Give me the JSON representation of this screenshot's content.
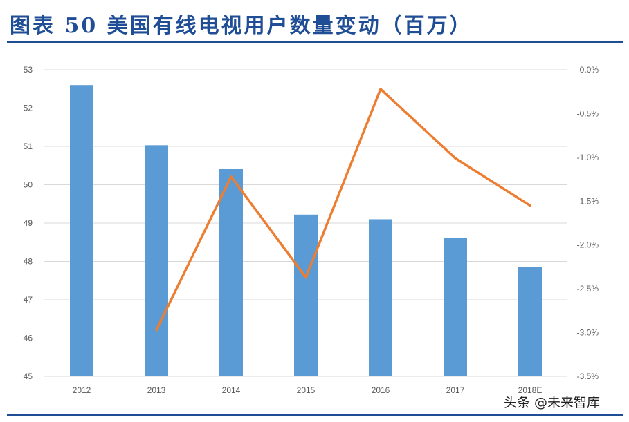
{
  "figure": {
    "title": "图表 50 美国有线电视用户数量变动（百万）"
  },
  "watermark": "头条 @未来智库",
  "colors": {
    "title": "#1f4e96",
    "bar": "#5b9bd5",
    "line": "#ed7d31",
    "grid": "#d9d9d9",
    "tick_text": "#595959"
  },
  "chart_data": {
    "type": "bar",
    "title": "",
    "categories": [
      "2012",
      "2013",
      "2014",
      "2015",
      "2016",
      "2017",
      "2018E"
    ],
    "series": [
      {
        "type": "bar",
        "axis": "left",
        "values": [
          52.6,
          51.03,
          50.41,
          49.22,
          49.1,
          48.61,
          47.86
        ]
      },
      {
        "type": "line",
        "axis": "right",
        "values": [
          null,
          -0.0297,
          -0.0122,
          -0.0237,
          -0.0022,
          -0.0101,
          -0.0155
        ]
      }
    ],
    "y_left": {
      "range": [
        45,
        53
      ],
      "ticks": [
        "45",
        "46",
        "47",
        "48",
        "49",
        "50",
        "51",
        "52",
        "53"
      ]
    },
    "y_right": {
      "range": [
        -0.035,
        0
      ],
      "ticks": [
        "0.0%",
        "-0.5%",
        "-1.0%",
        "-1.5%",
        "-2.0%",
        "-2.5%",
        "-3.0%",
        "-3.5%"
      ]
    },
    "grid": true,
    "legend": "none"
  }
}
